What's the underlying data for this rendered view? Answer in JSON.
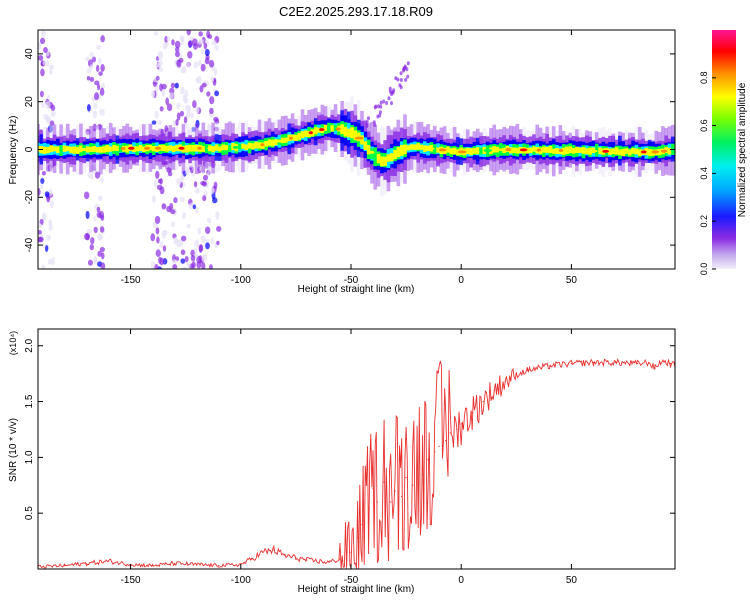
{
  "title": "C2E2.2025.293.17.18.R09",
  "colors": {
    "signal": "#e8312f",
    "background": "#ffffff",
    "axis": "#000000"
  },
  "chart_data": [
    {
      "type": "heatmap",
      "xlabel": "Height of straight line (km)",
      "ylabel": "Frequency (Hz)",
      "xlim": [
        -192,
        97
      ],
      "ylim": [
        -50,
        50
      ],
      "xticks": [
        -150,
        -100,
        -50,
        0,
        50
      ],
      "yticks": [
        -40,
        -20,
        0,
        20,
        40
      ],
      "xtick_labels": [
        "-150",
        "-100",
        "-50",
        "0",
        "50"
      ],
      "ytick_labels": [
        "-40",
        "-20",
        "0",
        "20",
        "40"
      ],
      "colorbar": {
        "label": "Normalized spectral amplitude",
        "range": [
          0,
          1
        ],
        "ticks": [
          "0.0",
          "0.2",
          "0.4",
          "0.6",
          "0.8"
        ],
        "tick_values": [
          0.0,
          0.2,
          0.4,
          0.6,
          0.8
        ],
        "colormap": [
          "#e6e0f5",
          "#8a2be2",
          "#0000ff",
          "#00e5ff",
          "#00ff40",
          "#ffff00",
          "#ff8c00",
          "#ff0000",
          "#ff1493"
        ]
      },
      "ridge_center_hz": {
        "x": [
          -192,
          -170,
          -150,
          -130,
          -110,
          -100,
          -90,
          -80,
          -70,
          -65,
          -60,
          -55,
          -50,
          -45,
          -42,
          -38,
          -35,
          -30,
          -25,
          -20,
          -10,
          0,
          20,
          50,
          80,
          90,
          97
        ],
        "y": [
          0,
          0,
          0.5,
          0.5,
          0.5,
          1,
          2,
          4,
          6.5,
          8,
          9,
          8.5,
          7,
          4,
          0,
          -4,
          -5,
          -2,
          0.5,
          1,
          0,
          -1,
          0,
          -0.5,
          -1,
          -1,
          0
        ]
      },
      "scatter_region_km": [
        [
          -192,
          -185
        ],
        [
          -170,
          -162
        ],
        [
          -140,
          -110
        ]
      ]
    },
    {
      "type": "line",
      "xlabel": "Height of straight line (km)",
      "ylabel": "SNR (10 * v/v)",
      "y_multiplier": "(x10⁴)",
      "xlim": [
        -192,
        97
      ],
      "ylim": [
        0,
        2.15
      ],
      "xticks": [
        -150,
        -100,
        -50,
        0,
        50
      ],
      "xtick_labels": [
        "-150",
        "-100",
        "-50",
        "0",
        "50"
      ],
      "yticks": [
        0.5,
        1.0,
        1.5,
        2.0
      ],
      "ytick_labels": [
        "0.5",
        "1.0",
        "1.5",
        "2.0"
      ],
      "series": [
        {
          "x": [
            -192,
            -180,
            -170,
            -160,
            -150,
            -140,
            -130,
            -120,
            -110,
            -100,
            -95,
            -90,
            -85,
            -80,
            -75,
            -70,
            -60,
            -55,
            -50,
            -47,
            -45,
            -42,
            -40,
            -38,
            -35,
            -32,
            -30,
            -27,
            -25,
            -22,
            -20,
            -17,
            -15,
            -12,
            -10,
            -7,
            -5,
            -2,
            0,
            5,
            10,
            15,
            20,
            25,
            30,
            40,
            50,
            60,
            70,
            80,
            85,
            88,
            90,
            92,
            95,
            97
          ],
          "y": [
            0.02,
            0.03,
            0.05,
            0.07,
            0.04,
            0.03,
            0.05,
            0.04,
            0.03,
            0.04,
            0.09,
            0.15,
            0.17,
            0.12,
            0.1,
            0.08,
            0.06,
            0.09,
            0.15,
            0.28,
            0.4,
            0.55,
            0.72,
            0.6,
            0.78,
            0.6,
            0.7,
            0.65,
            0.82,
            0.75,
            0.92,
            0.85,
            0.98,
            1.05,
            1.1,
            1.15,
            1.22,
            1.25,
            1.3,
            1.4,
            1.5,
            1.6,
            1.68,
            1.74,
            1.78,
            1.82,
            1.84,
            1.85,
            1.85,
            1.84,
            1.85,
            1.8,
            1.85,
            1.86,
            1.84,
            1.82
          ]
        }
      ]
    }
  ]
}
